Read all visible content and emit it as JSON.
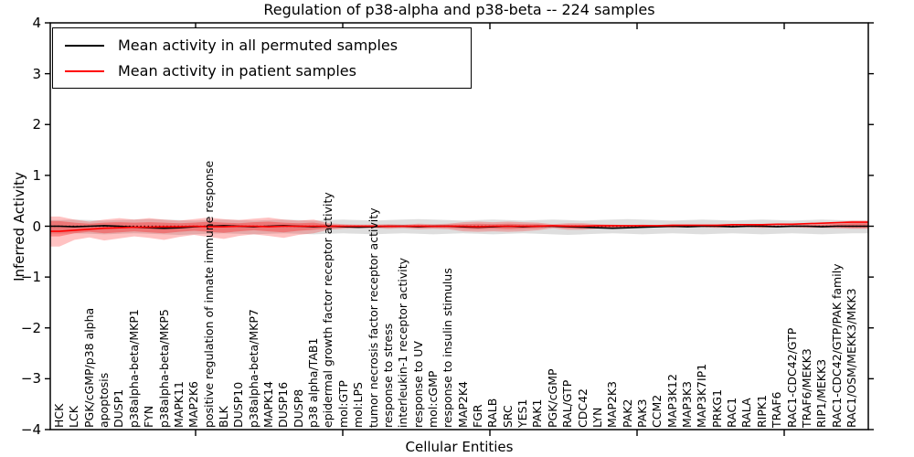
{
  "title": "Regulation of p38-alpha and p38-beta -- 224 samples",
  "xlabel": "Cellular Entities",
  "ylabel": "Inferred Activity",
  "ytick_labels": [
    "4",
    "3",
    "2",
    "1",
    "0",
    "−1",
    "−2",
    "−3",
    "−4"
  ],
  "legend": {
    "items": [
      {
        "label": "Mean activity in all permuted samples",
        "color": "#000000"
      },
      {
        "label": "Mean activity in patient samples",
        "color": "#ff0000"
      }
    ]
  },
  "colors": {
    "permuted_line": "#000000",
    "patient_line": "#ff0000",
    "permuted_band": "rgba(0,0,0,0.13)",
    "patient_band_outer": "rgba(255,0,0,0.24)",
    "patient_band_inner": "rgba(255,0,0,0.30)",
    "background": "#ffffff"
  },
  "chart_data": {
    "type": "line",
    "title": "Regulation of p38-alpha and p38-beta -- 224 samples",
    "xlabel": "Cellular Entities",
    "ylabel": "Inferred Activity",
    "ylim": [
      -4,
      4
    ],
    "yticks": [
      4,
      3,
      2,
      1,
      0,
      -1,
      -2,
      -3,
      -4
    ],
    "zero_line_dotted": true,
    "grid": false,
    "legend_position": "upper left",
    "categories": [
      "HCK",
      "LCK",
      "PGK/cGMP/p38 alpha",
      "apoptosis",
      "DUSP1",
      "p38alpha-beta/MKP1",
      "FYN",
      "p38alpha-beta/MKP5",
      "MAPK11",
      "MAP2K6",
      "positive regulation of innate immune response",
      "BLK",
      "DUSP10",
      "p38alpha-beta/MKP7",
      "MAPK14",
      "DUSP16",
      "DUSP8",
      "p38 alpha/TAB1",
      "epidermal growth factor receptor activity",
      "mol:GTP",
      "mol:LPS",
      "tumor necrosis factor receptor activity",
      "response to stress",
      "interleukin-1 receptor activity",
      "response to UV",
      "mol:cGMP",
      "response to insulin stimulus",
      "MAP2K4",
      "FGR",
      "RALB",
      "SRC",
      "YES1",
      "PAK1",
      "PGK/cGMP",
      "RAL/GTP",
      "CDC42",
      "LYN",
      "MAP2K3",
      "PAK2",
      "PAK3",
      "CCM2",
      "MAP3K12",
      "MAP3K3",
      "MAP3K7IP1",
      "PRKG1",
      "RAC1",
      "RALA",
      "RIPK1",
      "TRAF6",
      "RAC1-CDC42/GTP",
      "TRAF6/MEKK3",
      "RIP1/MEKK3",
      "RAC1-CDC42/GTP/PAK family",
      "RAC1/OSM/MEKK3/MKK3"
    ],
    "series": [
      {
        "name": "Mean activity in all permuted samples",
        "color": "#000000",
        "values": [
          0.0,
          -0.01,
          0.0,
          0.01,
          0.0,
          -0.02,
          -0.03,
          -0.04,
          -0.03,
          -0.01,
          0.0,
          0.01,
          0.0,
          -0.01,
          0.0,
          0.01,
          0.0,
          -0.01,
          0.0,
          -0.01,
          -0.02,
          -0.01,
          0.0,
          0.0,
          -0.01,
          0.0,
          0.0,
          -0.01,
          -0.02,
          -0.01,
          0.0,
          -0.01,
          0.0,
          0.0,
          -0.01,
          -0.02,
          -0.03,
          -0.04,
          -0.03,
          -0.02,
          -0.01,
          0.0,
          -0.01,
          0.0,
          0.0,
          -0.01,
          0.0,
          0.0,
          -0.01,
          0.0,
          0.0,
          -0.01,
          0.0,
          0.0
        ]
      },
      {
        "name": "Mean activity in patient samples",
        "color": "#ff0000",
        "values": [
          -0.1,
          -0.08,
          -0.06,
          -0.04,
          -0.03,
          -0.02,
          -0.02,
          -0.01,
          -0.01,
          0.0,
          -0.01,
          -0.01,
          0.0,
          0.0,
          -0.01,
          0.0,
          0.0,
          0.0,
          0.0,
          0.0,
          0.0,
          0.0,
          0.0,
          0.0,
          0.0,
          0.0,
          0.0,
          0.0,
          -0.01,
          0.0,
          0.0,
          0.0,
          0.0,
          0.01,
          0.0,
          0.0,
          0.01,
          0.01,
          0.01,
          0.01,
          0.01,
          0.02,
          0.02,
          0.02,
          0.02,
          0.03,
          0.03,
          0.03,
          0.04,
          0.04,
          0.05,
          0.06,
          0.07,
          0.08
        ]
      }
    ],
    "bands": [
      {
        "name": "permuted-samples-range",
        "fill": "rgba(0,0,0,0.13)",
        "upper": [
          0.12,
          0.13,
          0.12,
          0.11,
          0.12,
          0.13,
          0.14,
          0.13,
          0.12,
          0.11,
          0.12,
          0.13,
          0.12,
          0.11,
          0.12,
          0.13,
          0.12,
          0.11,
          0.12,
          0.13,
          0.12,
          0.11,
          0.12,
          0.13,
          0.14,
          0.13,
          0.12,
          0.11,
          0.12,
          0.13,
          0.12,
          0.11,
          0.12,
          0.13,
          0.12,
          0.11,
          0.12,
          0.13,
          0.14,
          0.13,
          0.12,
          0.11,
          0.12,
          0.13,
          0.12,
          0.11,
          0.12,
          0.13,
          0.12,
          0.11,
          0.12,
          0.13,
          0.12,
          0.11
        ],
        "lower": [
          -0.15,
          -0.14,
          -0.15,
          -0.16,
          -0.15,
          -0.14,
          -0.15,
          -0.16,
          -0.17,
          -0.16,
          -0.15,
          -0.14,
          -0.15,
          -0.16,
          -0.15,
          -0.14,
          -0.15,
          -0.16,
          -0.15,
          -0.14,
          -0.15,
          -0.16,
          -0.15,
          -0.14,
          -0.15,
          -0.16,
          -0.15,
          -0.14,
          -0.15,
          -0.16,
          -0.15,
          -0.14,
          -0.15,
          -0.16,
          -0.17,
          -0.16,
          -0.15,
          -0.14,
          -0.15,
          -0.16,
          -0.15,
          -0.14,
          -0.15,
          -0.16,
          -0.15,
          -0.14,
          -0.15,
          -0.16,
          -0.15,
          -0.14,
          -0.15,
          -0.16,
          -0.15,
          -0.14
        ]
      },
      {
        "name": "patient-samples-range-outer",
        "fill": "rgba(255,0,0,0.24)",
        "upper": [
          0.19,
          0.13,
          0.09,
          0.13,
          0.16,
          0.13,
          0.16,
          0.13,
          0.11,
          0.14,
          0.17,
          0.14,
          0.12,
          0.15,
          0.17,
          0.13,
          0.11,
          0.13,
          0.06,
          0.04,
          0.03,
          0.03,
          0.04,
          0.03,
          0.05,
          0.04,
          0.05,
          0.08,
          0.09,
          0.08,
          0.09,
          0.08,
          0.07,
          0.04,
          0.06,
          0.06,
          0.04,
          0.03,
          0.02,
          0.03,
          0.02,
          0.03,
          0.02,
          0.02,
          0.03,
          0.02,
          0.02,
          0.03,
          0.02,
          0.03,
          0.04,
          0.05,
          0.08,
          0.11
        ],
        "lower": [
          -0.4,
          -0.27,
          -0.22,
          -0.28,
          -0.24,
          -0.2,
          -0.23,
          -0.27,
          -0.21,
          -0.17,
          -0.21,
          -0.25,
          -0.19,
          -0.16,
          -0.19,
          -0.23,
          -0.17,
          -0.14,
          -0.07,
          -0.05,
          -0.04,
          -0.04,
          -0.05,
          -0.04,
          -0.06,
          -0.05,
          -0.06,
          -0.1,
          -0.11,
          -0.1,
          -0.11,
          -0.1,
          -0.08,
          -0.04,
          -0.07,
          -0.07,
          -0.05,
          -0.03,
          -0.02,
          -0.03,
          -0.02,
          -0.03,
          -0.02,
          -0.02,
          -0.03,
          -0.02,
          -0.02,
          -0.03,
          -0.02,
          -0.02,
          -0.03,
          -0.03,
          -0.04,
          -0.05
        ]
      },
      {
        "name": "patient-samples-range-inner",
        "fill": "rgba(255,0,0,0.30)",
        "upper": [
          0.1,
          0.07,
          0.05,
          0.07,
          0.08,
          0.07,
          0.08,
          0.07,
          0.06,
          0.07,
          0.09,
          0.07,
          0.06,
          0.08,
          0.09,
          0.07,
          0.06,
          0.07,
          0.03,
          0.02,
          0.02,
          0.02,
          0.02,
          0.02,
          0.03,
          0.02,
          0.03,
          0.04,
          0.05,
          0.04,
          0.05,
          0.04,
          0.04,
          0.02,
          0.03,
          0.03,
          0.02,
          0.02,
          0.01,
          0.02,
          0.01,
          0.02,
          0.01,
          0.01,
          0.02,
          0.01,
          0.01,
          0.02,
          0.01,
          0.02,
          0.02,
          0.03,
          0.04,
          0.06
        ],
        "lower": [
          -0.2,
          -0.14,
          -0.11,
          -0.14,
          -0.12,
          -0.1,
          -0.12,
          -0.14,
          -0.11,
          -0.09,
          -0.11,
          -0.13,
          -0.1,
          -0.08,
          -0.1,
          -0.12,
          -0.09,
          -0.07,
          -0.04,
          -0.03,
          -0.02,
          -0.02,
          -0.03,
          -0.02,
          -0.03,
          -0.03,
          -0.03,
          -0.05,
          -0.06,
          -0.05,
          -0.06,
          -0.05,
          -0.04,
          -0.02,
          -0.04,
          -0.04,
          -0.03,
          -0.02,
          -0.01,
          -0.02,
          -0.01,
          -0.02,
          -0.01,
          -0.01,
          -0.02,
          -0.01,
          -0.01,
          -0.02,
          -0.01,
          -0.01,
          -0.02,
          -0.02,
          -0.02,
          -0.03
        ]
      }
    ]
  }
}
